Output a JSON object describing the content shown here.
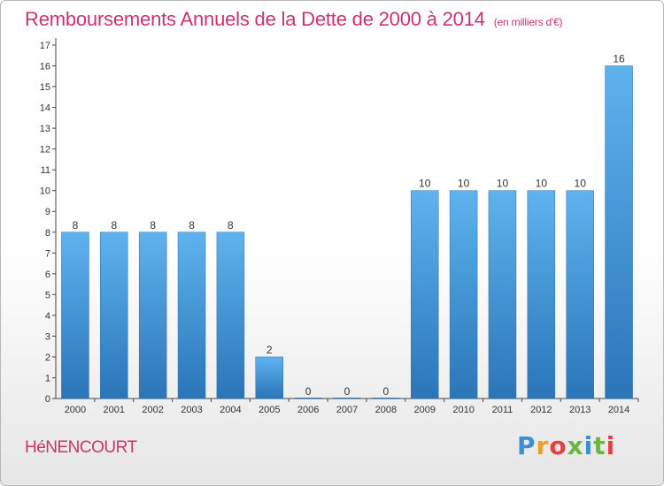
{
  "header": {
    "title": "Remboursements Annuels de la Dette de 2000 à 2014",
    "unit": "(en milliers d'€)"
  },
  "footer": {
    "commune": "HéNENCOURT",
    "brand": [
      "P",
      "r",
      "o",
      "x",
      "i",
      "t",
      "i"
    ],
    "brand_colors": [
      "#3a8fd6",
      "#f0a020",
      "#e84040",
      "#6cb83a",
      "#3a8fd6",
      "#6cb83a",
      "#e84040"
    ]
  },
  "chart_data": {
    "type": "bar",
    "title": "Remboursements Annuels de la Dette de 2000 à 2014",
    "subtitle": "(en milliers d'€)",
    "categories": [
      "2000",
      "2001",
      "2002",
      "2003",
      "2004",
      "2005",
      "2006",
      "2007",
      "2008",
      "2009",
      "2010",
      "2011",
      "2012",
      "2013",
      "2014"
    ],
    "values": [
      8,
      8,
      8,
      8,
      8,
      2,
      0,
      0,
      0,
      10,
      10,
      10,
      10,
      10,
      16
    ],
    "data_labels": [
      "8",
      "8",
      "8",
      "8",
      "8",
      "2",
      "0",
      "0",
      "0",
      "10",
      "10",
      "10",
      "10",
      "10",
      "16"
    ],
    "yticks": [
      0,
      1,
      2,
      3,
      4,
      5,
      6,
      7,
      8,
      9,
      10,
      11,
      12,
      13,
      14,
      15,
      16,
      17
    ],
    "ylim": [
      0,
      17
    ],
    "grid": false,
    "colors": {
      "bar_light": "#5eb3ee",
      "bar_dark": "#2a75b8",
      "axis": "#444444",
      "label": "#333333"
    }
  }
}
